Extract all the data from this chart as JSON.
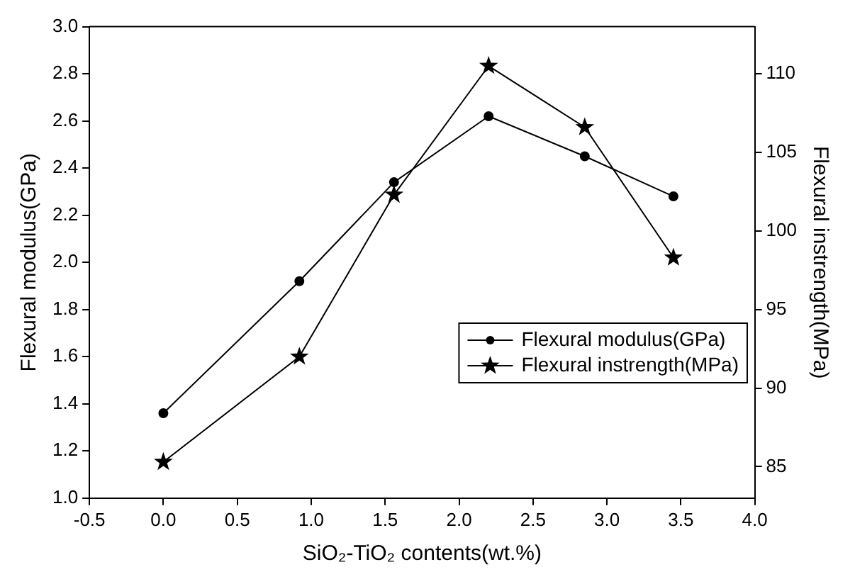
{
  "chart_data": {
    "type": "line",
    "xlabel": "SiO₂-TiO₂ contents(wt.%)",
    "ylabel": "Flexural modulus(GPa)",
    "y2label": "Flexural instrength(MPa)",
    "series": [
      {
        "name": "Flexural modulus(GPa)",
        "color": "#000000",
        "marker": "circle",
        "x": [
          0,
          0.92,
          1.56,
          2.2,
          2.85,
          3.45
        ],
        "values": [
          1.36,
          1.92,
          2.34,
          2.62,
          2.45,
          2.28
        ]
      },
      {
        "name": "Flexural instrength(MPa)",
        "color": "#000000",
        "marker": "star",
        "axis": "y2",
        "x": [
          0,
          0.92,
          1.56,
          2.2,
          2.85,
          3.45
        ],
        "values": [
          85.3,
          92,
          102.3,
          110.5,
          106.6,
          98.3
        ]
      }
    ],
    "xlim": [
      -0.5,
      4.0
    ],
    "xticks": [
      {
        "value": -0.5,
        "label": "-0.5"
      },
      {
        "value": 0,
        "label": "0.0"
      },
      {
        "value": 0.5,
        "label": "0.5"
      },
      {
        "value": 1,
        "label": "1.0"
      },
      {
        "value": 1.5,
        "label": "1.5"
      },
      {
        "value": 2,
        "label": "2.0"
      },
      {
        "value": 2.5,
        "label": "2.5"
      },
      {
        "value": 3,
        "label": "3.0"
      },
      {
        "value": 3.5,
        "label": "3.5"
      },
      {
        "value": 4,
        "label": "4.0"
      }
    ],
    "ylim": [
      1.0,
      3.0
    ],
    "yticks": [
      {
        "value": 1,
        "label": "1.0"
      },
      {
        "value": 1.2,
        "label": "1.2"
      },
      {
        "value": 1.4,
        "label": "1.4"
      },
      {
        "value": 1.6,
        "label": "1.6"
      },
      {
        "value": 1.8,
        "label": "1.8"
      },
      {
        "value": 2,
        "label": "2.0"
      },
      {
        "value": 2.2,
        "label": "2.2"
      },
      {
        "value": 2.4,
        "label": "2.4"
      },
      {
        "value": 2.6,
        "label": "2.6"
      },
      {
        "value": 2.8,
        "label": "2.8"
      },
      {
        "value": 3,
        "label": "3.0"
      }
    ],
    "y2lim": [
      83,
      113
    ],
    "y2ticks": [
      85,
      90,
      95,
      100,
      105,
      110
    ],
    "legend": "right",
    "grid": false,
    "line_style": "solid"
  }
}
